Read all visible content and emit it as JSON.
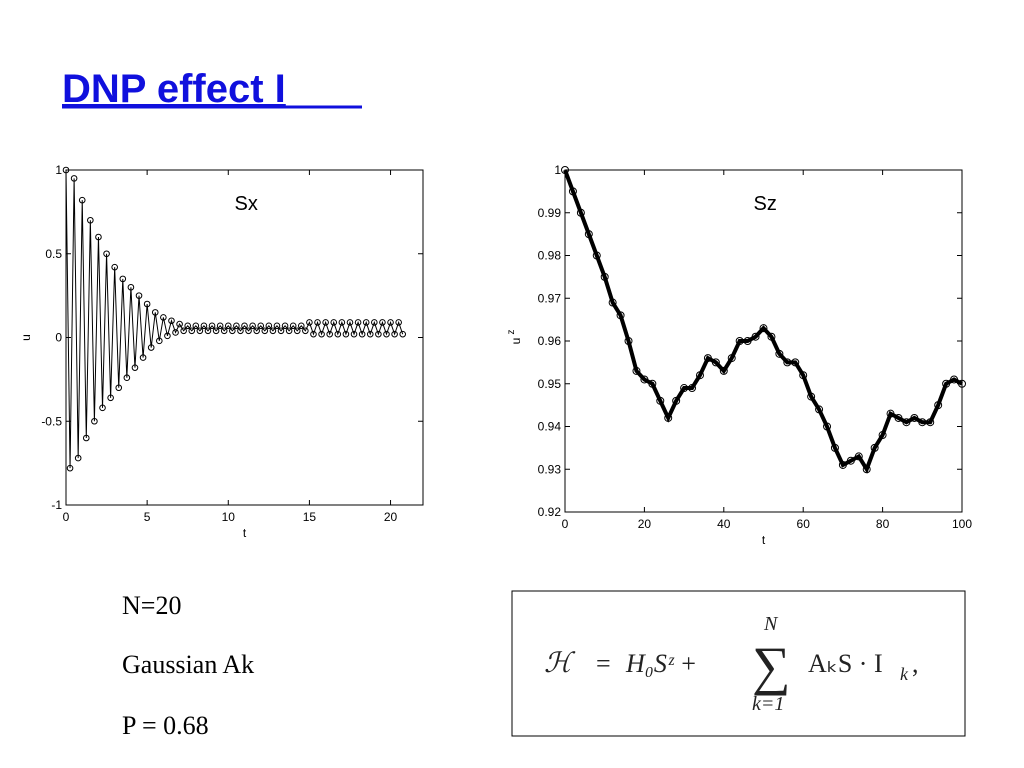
{
  "title": "DNP effect I",
  "chart_data": [
    {
      "type": "line",
      "annotation": "Sx",
      "xlabel": "t",
      "ylabel": "u",
      "color": "#000000",
      "x": [
        0,
        0.25,
        0.5,
        0.75,
        1,
        1.25,
        1.5,
        1.75,
        2,
        2.25,
        2.5,
        2.75,
        3,
        3.25,
        3.5,
        3.75,
        4,
        4.25,
        4.5,
        4.75,
        5,
        5.25,
        5.5,
        5.75,
        6,
        6.25,
        6.5,
        6.75,
        7,
        7.25,
        7.5,
        7.75,
        8,
        8.25,
        8.5,
        8.75,
        9,
        9.25,
        9.5,
        9.75,
        10,
        10.25,
        10.5,
        10.75,
        11,
        11.25,
        11.5,
        11.75,
        12,
        12.25,
        12.5,
        12.75,
        13,
        13.25,
        13.5,
        13.75,
        14,
        14.25,
        14.5,
        14.75,
        15,
        15.25,
        15.5,
        15.75,
        16,
        16.25,
        16.5,
        16.75,
        17,
        17.25,
        17.5,
        17.75,
        18,
        18.25,
        18.5,
        18.75,
        19,
        19.25,
        19.5,
        19.75,
        20,
        20.25,
        20.5,
        20.75
      ],
      "values": [
        1,
        -0.78,
        0.95,
        -0.72,
        0.82,
        -0.6,
        0.7,
        -0.5,
        0.6,
        -0.42,
        0.5,
        -0.36,
        0.42,
        -0.3,
        0.35,
        -0.24,
        0.3,
        -0.18,
        0.25,
        -0.12,
        0.2,
        -0.06,
        0.15,
        -0.02,
        0.12,
        0.01,
        0.1,
        0.03,
        0.08,
        0.04,
        0.07,
        0.04,
        0.07,
        0.04,
        0.07,
        0.04,
        0.07,
        0.04,
        0.07,
        0.04,
        0.07,
        0.04,
        0.07,
        0.04,
        0.07,
        0.04,
        0.07,
        0.04,
        0.07,
        0.04,
        0.07,
        0.04,
        0.07,
        0.04,
        0.07,
        0.04,
        0.07,
        0.04,
        0.07,
        0.04,
        0.09,
        0.02,
        0.09,
        0.02,
        0.09,
        0.02,
        0.09,
        0.02,
        0.09,
        0.02,
        0.09,
        0.02,
        0.09,
        0.02,
        0.09,
        0.02,
        0.09,
        0.02,
        0.09,
        0.02,
        0.09,
        0.02,
        0.09,
        0.02
      ],
      "xlim": [
        0,
        22
      ],
      "ylim": [
        -1,
        1
      ],
      "xticks": [
        0,
        5,
        10,
        15,
        20
      ],
      "yticks": [
        -1,
        -0.5,
        0,
        0.5,
        1
      ]
    },
    {
      "type": "line",
      "annotation": "Sz",
      "xlabel": "t",
      "ylabel": "u",
      "ylabel_superscript": "z",
      "color": "#000000",
      "x": [
        0,
        2,
        4,
        6,
        8,
        10,
        12,
        14,
        16,
        18,
        20,
        22,
        24,
        26,
        28,
        30,
        32,
        34,
        36,
        38,
        40,
        42,
        44,
        46,
        48,
        50,
        52,
        54,
        56,
        58,
        60,
        62,
        64,
        66,
        68,
        70,
        72,
        74,
        76,
        78,
        80,
        82,
        84,
        86,
        88,
        90,
        92,
        94,
        96,
        98,
        100
      ],
      "values": [
        1,
        0.995,
        0.99,
        0.985,
        0.98,
        0.975,
        0.969,
        0.966,
        0.96,
        0.953,
        0.951,
        0.95,
        0.946,
        0.942,
        0.946,
        0.949,
        0.949,
        0.952,
        0.956,
        0.955,
        0.953,
        0.956,
        0.96,
        0.96,
        0.961,
        0.963,
        0.961,
        0.957,
        0.955,
        0.955,
        0.952,
        0.947,
        0.944,
        0.94,
        0.935,
        0.931,
        0.932,
        0.933,
        0.93,
        0.935,
        0.938,
        0.943,
        0.942,
        0.941,
        0.942,
        0.941,
        0.941,
        0.945,
        0.95,
        0.951,
        0.95
      ],
      "xlim": [
        0,
        100
      ],
      "ylim": [
        0.92,
        1
      ],
      "xticks": [
        0,
        20,
        40,
        60,
        80,
        100
      ],
      "yticks": [
        0.92,
        0.93,
        0.94,
        0.95,
        0.96,
        0.97,
        0.98,
        0.99,
        1
      ]
    }
  ],
  "notes": [
    "N=20",
    "Gaussian Ak",
    "P = 0.68"
  ],
  "equation": {
    "lhs": "ℋ",
    "eq": "=",
    "term1": "H₀Sᶻ +",
    "sum": "∑",
    "upper": "N",
    "lower": "k=1",
    "term2": "AₖS · I",
    "sub": "k",
    "end": ","
  }
}
